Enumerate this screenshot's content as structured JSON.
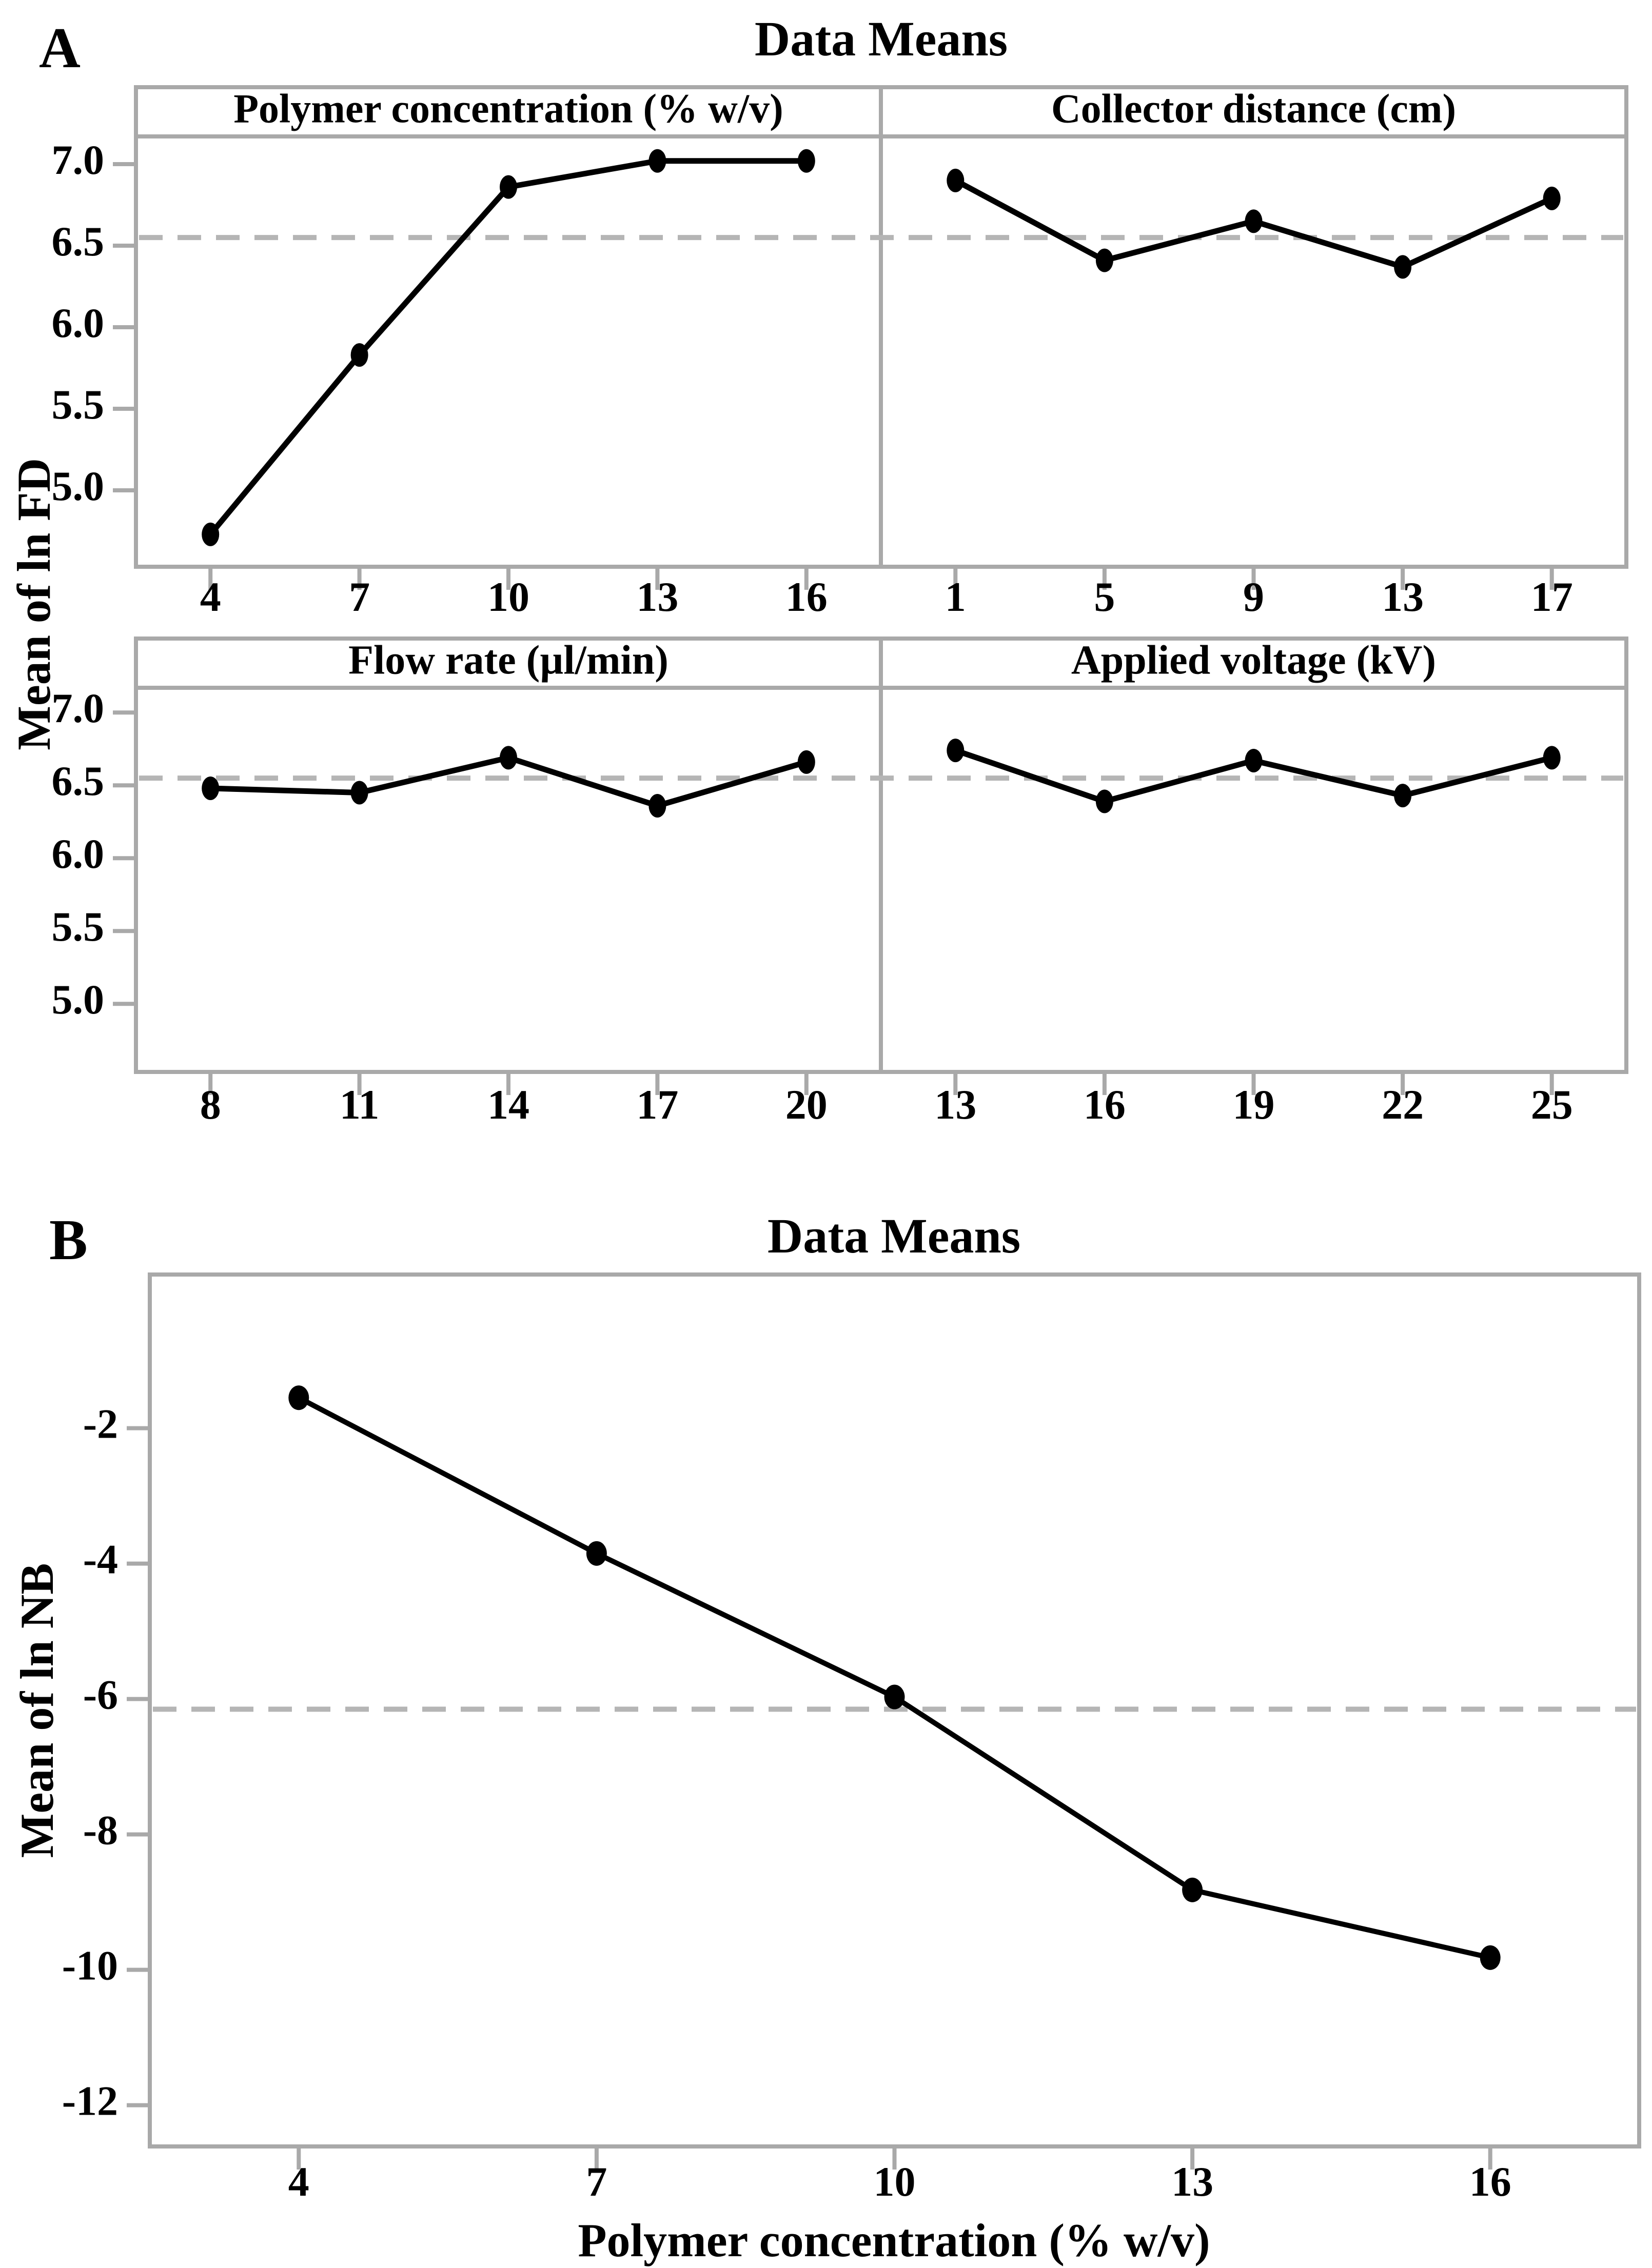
{
  "figure": {
    "panel_a": {
      "label": "A",
      "title": "Data Means",
      "y_axis_label": "Mean of ln FD",
      "y_ticks": [
        "7.0",
        "6.5",
        "6.0",
        "5.5",
        "5.0"
      ],
      "grand_mean": 6.55
    },
    "panel_b": {
      "label": "B",
      "title": "Data Means",
      "y_axis_label": "Mean of ln NB",
      "x_axis_label": "Polymer concentration (% w/v)",
      "y_ticks": [
        "-2",
        "-4",
        "-6",
        "-8",
        "-10",
        "-12"
      ],
      "grand_mean": -6.15
    }
  },
  "chart_data": [
    {
      "panel": "A",
      "type": "line",
      "title": "Polymer concentration (% w/v)",
      "x": [
        4,
        7,
        10,
        13,
        16
      ],
      "values": [
        4.73,
        5.83,
        6.86,
        7.02,
        7.02
      ],
      "ylabel": "Mean of ln FD",
      "ylim": [
        4.54,
        7.17
      ],
      "grand_mean_line": 6.55,
      "grid": "off",
      "legend": "none"
    },
    {
      "panel": "A",
      "type": "line",
      "title": "Collector distance (cm)",
      "x": [
        1,
        5,
        9,
        13,
        17
      ],
      "values": [
        6.9,
        6.41,
        6.65,
        6.37,
        6.79
      ],
      "ylabel": "Mean of ln FD",
      "ylim": [
        4.54,
        7.17
      ],
      "grand_mean_line": 6.55,
      "grid": "off",
      "legend": "none"
    },
    {
      "panel": "A",
      "type": "line",
      "title": "Flow rate (µl/min)",
      "x": [
        8,
        11,
        14,
        17,
        20
      ],
      "values": [
        6.48,
        6.45,
        6.69,
        6.36,
        6.66
      ],
      "ylabel": "Mean of ln FD",
      "ylim": [
        4.54,
        7.17
      ],
      "grand_mean_line": 6.55,
      "grid": "off",
      "legend": "none"
    },
    {
      "panel": "A",
      "type": "line",
      "title": "Applied voltage (kV)",
      "x": [
        13,
        16,
        19,
        22,
        25
      ],
      "values": [
        6.74,
        6.39,
        6.67,
        6.43,
        6.69
      ],
      "ylabel": "Mean of ln FD",
      "ylim": [
        4.54,
        7.17
      ],
      "grand_mean_line": 6.55,
      "grid": "off",
      "legend": "none"
    },
    {
      "panel": "B",
      "type": "line",
      "title": "Data Means",
      "x": [
        4,
        7,
        10,
        13,
        16
      ],
      "values": [
        -1.55,
        -3.85,
        -5.97,
        -8.82,
        -9.82
      ],
      "xlabel": "Polymer concentration (% w/v)",
      "ylabel": "Mean of ln NB",
      "ylim": [
        -12.65,
        0.27
      ],
      "grand_mean_line": -6.15,
      "grid": "off",
      "legend": "none"
    }
  ],
  "colors": {
    "frame": "#a9a9a9",
    "dashed_line": "#b5b5b5",
    "series": "#000000",
    "text": "#000000",
    "background": "#ffffff"
  }
}
